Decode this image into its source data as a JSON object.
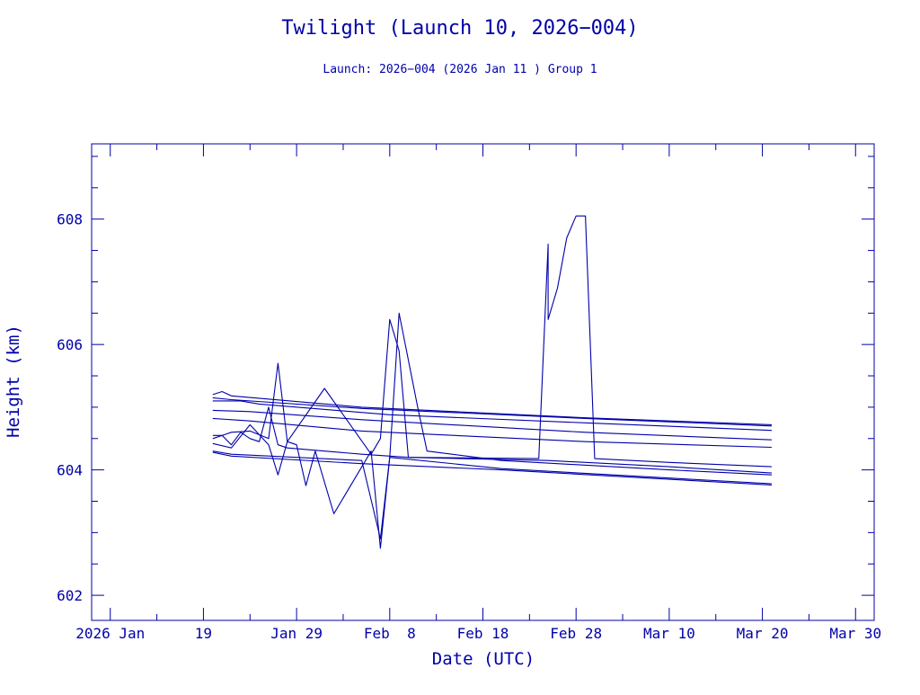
{
  "chart_data": {
    "type": "line",
    "title": "Twilight (Launch 10, 2026−004)",
    "subtitle": "Launch: 2026−004  (2026 Jan 11 )  Group 1",
    "xlabel": "Date (UTC)",
    "ylabel": "Height (km)",
    "x_unit": "date",
    "xlim": [
      "2026-01-07",
      "2026-04-01"
    ],
    "ylim": [
      601.6,
      609.2
    ],
    "x_ticks": [
      {
        "date": "2026-01-09",
        "label": "2026 Jan"
      },
      {
        "date": "2026-01-19",
        "label": "19"
      },
      {
        "date": "2026-01-29",
        "label": "Jan 29"
      },
      {
        "date": "2026-02-08",
        "label": "Feb  8"
      },
      {
        "date": "2026-02-18",
        "label": "Feb 18"
      },
      {
        "date": "2026-02-28",
        "label": "Feb 28"
      },
      {
        "date": "2026-03-10",
        "label": "Mar 10"
      },
      {
        "date": "2026-03-20",
        "label": "Mar 20"
      },
      {
        "date": "2026-03-30",
        "label": "Mar 30"
      }
    ],
    "y_ticks": [
      {
        "value": 602,
        "label": "602"
      },
      {
        "value": 604,
        "label": "604"
      },
      {
        "value": 606,
        "label": "606"
      },
      {
        "value": 608,
        "label": "608"
      }
    ],
    "y_minor_step": 0.5,
    "grid": false,
    "line_color": "#0000aa",
    "series": [
      {
        "points": [
          [
            "2026-01-20",
            605.2
          ],
          [
            "2026-01-21",
            605.25
          ],
          [
            "2026-01-22",
            605.18
          ],
          [
            "2026-02-05",
            605.0
          ],
          [
            "2026-03-01",
            604.83
          ],
          [
            "2026-03-21",
            604.72
          ]
        ]
      },
      {
        "points": [
          [
            "2026-01-20",
            605.15
          ],
          [
            "2026-01-22",
            605.12
          ],
          [
            "2026-02-05",
            604.98
          ],
          [
            "2026-03-01",
            604.82
          ],
          [
            "2026-03-21",
            604.7
          ]
        ]
      },
      {
        "points": [
          [
            "2026-01-20",
            605.1
          ],
          [
            "2026-01-23",
            605.1
          ],
          [
            "2026-01-25",
            605.05
          ],
          [
            "2026-02-08",
            604.88
          ],
          [
            "2026-03-01",
            604.75
          ],
          [
            "2026-03-21",
            604.63
          ]
        ]
      },
      {
        "points": [
          [
            "2026-01-20",
            604.95
          ],
          [
            "2026-01-24",
            604.93
          ],
          [
            "2026-02-05",
            604.8
          ],
          [
            "2026-03-01",
            604.6
          ],
          [
            "2026-03-21",
            604.48
          ]
        ]
      },
      {
        "points": [
          [
            "2026-01-20",
            604.82
          ],
          [
            "2026-01-24",
            604.78
          ],
          [
            "2026-02-05",
            604.62
          ],
          [
            "2026-03-01",
            604.45
          ],
          [
            "2026-03-21",
            604.36
          ]
        ]
      },
      {
        "points": [
          [
            "2026-01-20",
            604.55
          ],
          [
            "2026-01-21",
            604.55
          ],
          [
            "2026-01-22",
            604.4
          ],
          [
            "2026-01-23",
            604.6
          ],
          [
            "2026-01-24",
            604.5
          ],
          [
            "2026-01-25",
            604.45
          ],
          [
            "2026-01-26",
            605.0
          ],
          [
            "2026-01-27",
            604.4
          ],
          [
            "2026-01-28",
            604.35
          ],
          [
            "2026-02-05",
            604.25
          ],
          [
            "2026-02-10",
            604.2
          ],
          [
            "2026-02-24",
            604.18
          ],
          [
            "2026-02-25",
            607.6
          ],
          [
            "2026-02-25",
            606.4
          ],
          [
            "2026-02-26",
            606.9
          ],
          [
            "2026-02-27",
            607.7
          ],
          [
            "2026-02-28",
            608.05
          ],
          [
            "2026-03-01",
            608.05
          ],
          [
            "2026-03-02",
            604.18
          ],
          [
            "2026-03-10",
            604.12
          ],
          [
            "2026-03-21",
            604.05
          ]
        ]
      },
      {
        "points": [
          [
            "2026-01-20",
            604.5
          ],
          [
            "2026-01-22",
            604.6
          ],
          [
            "2026-01-24",
            604.62
          ],
          [
            "2026-01-26",
            604.5
          ],
          [
            "2026-01-27",
            605.7
          ],
          [
            "2026-01-28",
            604.45
          ],
          [
            "2026-02-01",
            605.3
          ],
          [
            "2026-02-06",
            604.25
          ],
          [
            "2026-02-07",
            604.5
          ],
          [
            "2026-02-08",
            606.4
          ],
          [
            "2026-02-09",
            605.9
          ],
          [
            "2026-02-10",
            604.2
          ],
          [
            "2026-02-25",
            604.15
          ],
          [
            "2026-03-10",
            604.05
          ],
          [
            "2026-03-21",
            603.95
          ]
        ]
      },
      {
        "points": [
          [
            "2026-01-20",
            604.42
          ],
          [
            "2026-01-22",
            604.35
          ],
          [
            "2026-01-24",
            604.72
          ],
          [
            "2026-01-26",
            604.4
          ],
          [
            "2026-01-27",
            603.92
          ],
          [
            "2026-01-28",
            604.45
          ],
          [
            "2026-01-29",
            604.4
          ],
          [
            "2026-01-30",
            603.75
          ],
          [
            "2026-01-31",
            604.3
          ],
          [
            "2026-02-02",
            603.3
          ],
          [
            "2026-02-06",
            604.3
          ],
          [
            "2026-02-07",
            602.75
          ],
          [
            "2026-02-08",
            604.2
          ],
          [
            "2026-02-09",
            606.5
          ],
          [
            "2026-02-11",
            605.0
          ],
          [
            "2026-02-12",
            604.3
          ],
          [
            "2026-02-20",
            604.15
          ],
          [
            "2026-03-10",
            604.0
          ],
          [
            "2026-03-21",
            603.92
          ]
        ]
      },
      {
        "points": [
          [
            "2026-01-20",
            604.3
          ],
          [
            "2026-01-22",
            604.25
          ],
          [
            "2026-02-05",
            604.15
          ],
          [
            "2026-02-07",
            602.9
          ],
          [
            "2026-02-08",
            604.2
          ],
          [
            "2026-02-20",
            604.02
          ],
          [
            "2026-03-10",
            603.87
          ],
          [
            "2026-03-21",
            603.78
          ]
        ]
      },
      {
        "points": [
          [
            "2026-01-20",
            604.28
          ],
          [
            "2026-01-22",
            604.22
          ],
          [
            "2026-02-05",
            604.1
          ],
          [
            "2026-02-20",
            604.0
          ],
          [
            "2026-03-10",
            603.85
          ],
          [
            "2026-03-21",
            603.76
          ]
        ]
      }
    ]
  }
}
